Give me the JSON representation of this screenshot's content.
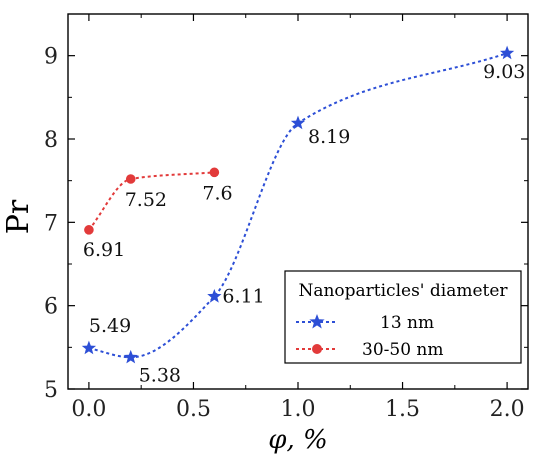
{
  "chart_data": {
    "type": "line",
    "xlabel": "φ, %",
    "ylabel": "Pr",
    "xlim": [
      -0.1,
      2.1
    ],
    "ylim": [
      5.0,
      9.5
    ],
    "x_ticks": [
      "0.0",
      "0.5",
      "1.0",
      "1.5",
      "2.0"
    ],
    "y_ticks": [
      "5",
      "6",
      "7",
      "8",
      "9"
    ],
    "grid": false,
    "legend": {
      "title": "Nanoparticles' diameter",
      "placement": "bottom-right"
    },
    "series": [
      {
        "name": "13 nm",
        "color": "#2d4fd6",
        "marker": "star",
        "line_style": "dotted",
        "x": [
          0.0,
          0.2,
          0.6,
          1.0,
          2.0
        ],
        "y": [
          5.49,
          5.38,
          6.11,
          8.19,
          9.03
        ],
        "labels": [
          "5.49",
          "5.38",
          "6.11",
          "8.19",
          "9.03"
        ]
      },
      {
        "name": "30-50 nm",
        "color": "#e23a3a",
        "marker": "circle",
        "line_style": "dotted",
        "x": [
          0.0,
          0.2,
          0.6
        ],
        "y": [
          6.91,
          7.52,
          7.6
        ],
        "labels": [
          "6.91",
          "7.52",
          "7.6"
        ]
      }
    ]
  }
}
